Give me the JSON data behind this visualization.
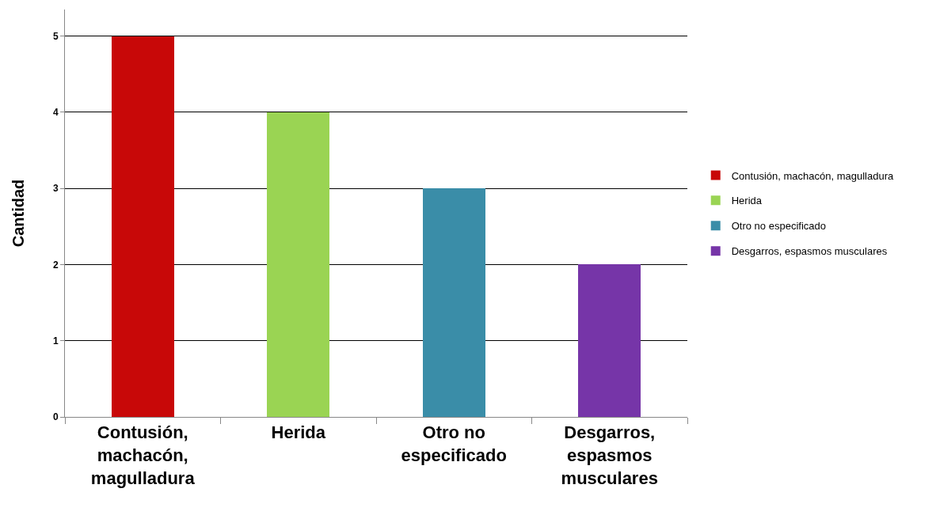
{
  "chart_data": {
    "type": "bar",
    "ylabel": "Cantidad",
    "categories": [
      "Contusión, machacón, magulladura",
      "Herida",
      "Otro no especificado",
      "Desgarros, espasmos musculares"
    ],
    "series": [
      {
        "name": "Contusión, machacón, magulladura",
        "color": "#c80808",
        "values": [
          5,
          null,
          null,
          null
        ]
      },
      {
        "name": "Herida",
        "color": "#9ad453",
        "values": [
          null,
          4,
          null,
          null
        ]
      },
      {
        "name": "Otro no especificado",
        "color": "#3a8da8",
        "values": [
          null,
          null,
          3,
          null
        ]
      },
      {
        "name": "Desgarros, espasmos musculares",
        "color": "#7635a8",
        "values": [
          null,
          null,
          null,
          2
        ]
      }
    ],
    "stacked": true,
    "ylim": [
      0,
      5.35
    ],
    "yticks": [
      0,
      1,
      2,
      3,
      4,
      5
    ],
    "grid": "y",
    "legend": "right"
  }
}
